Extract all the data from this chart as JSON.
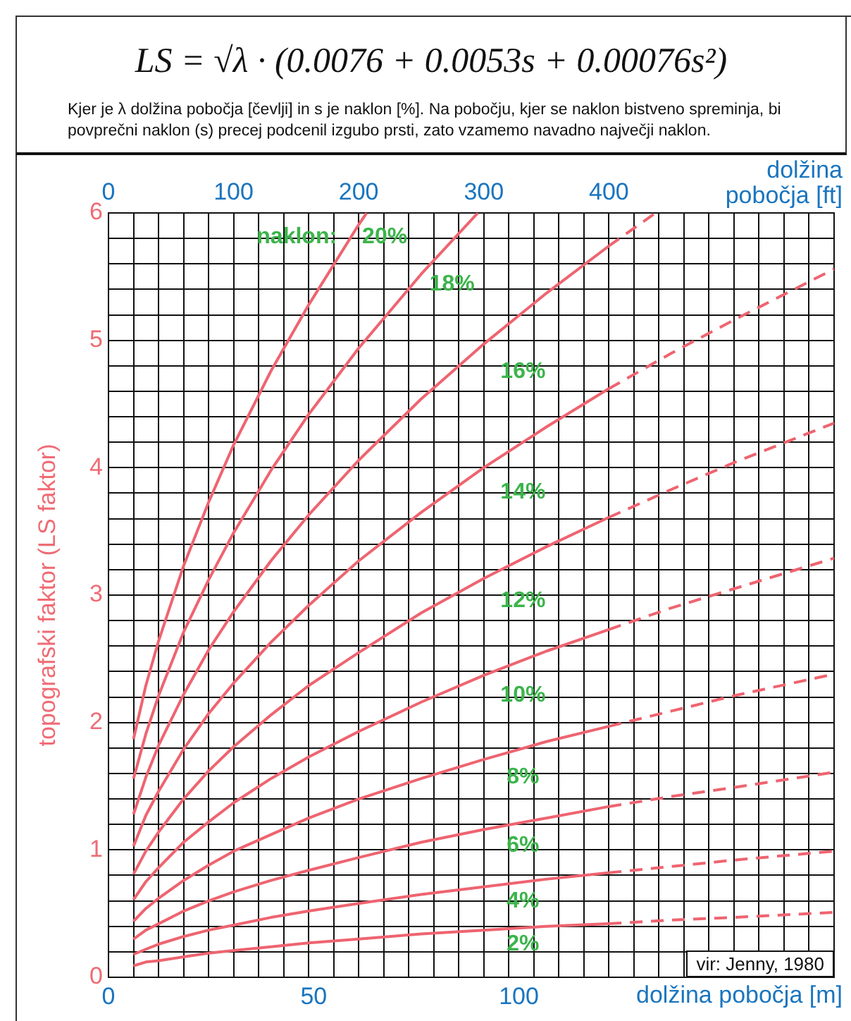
{
  "chart_data": {
    "type": "line",
    "title": "LS = √λ · (0.0076 + 0.0053s + 0.00076s²)",
    "subtitle": "Kjer je λ dolžina pobočja [čevlji] in s je naklon [%]. Na pobočju, kjer se naklon bistveno spreminja, bi povprečni naklon (s) precej podcenil izgubo prsti, zato vzamemo navadno največji naklon.",
    "xlabel": "dolžina pobočja [m]",
    "x2label": "dolžina pobočja [ft]",
    "ylabel": "topografski faktor (LS faktor)",
    "xlim": [
      0,
      176.8
    ],
    "xticks": [
      0,
      50,
      100
    ],
    "x2lim": [
      0,
      580
    ],
    "x2ticks": [
      0,
      {
        "value": 20,
        "label": null
      },
      {
        "value": 40,
        "label": null
      },
      {
        "value": 60,
        "label": null
      },
      {
        "value": 80,
        "label": null
      },
      100,
      {
        "value": 120,
        "label": null
      },
      {
        "value": 140,
        "label": null
      },
      {
        "value": 160,
        "label": null
      },
      {
        "value": 180,
        "label": null
      },
      200,
      {
        "value": 220,
        "label": null
      },
      {
        "value": 240,
        "label": null
      },
      {
        "value": 260,
        "label": null
      },
      {
        "value": 280,
        "label": null
      },
      300,
      {
        "value": 320,
        "label": null
      },
      {
        "value": 340,
        "label": null
      },
      {
        "value": 360,
        "label": null
      },
      {
        "value": 380,
        "label": null
      },
      400,
      {
        "value": 420,
        "label": null
      },
      {
        "value": 440,
        "label": null
      },
      {
        "value": 460,
        "label": null
      },
      {
        "value": 480,
        "label": null
      },
      {
        "value": 500,
        "label": null
      },
      {
        "value": 520,
        "label": null
      },
      {
        "value": 540,
        "label": null
      },
      {
        "value": 560,
        "label": null
      },
      {
        "value": 580,
        "label": null
      }
    ],
    "ylim": [
      0,
      6
    ],
    "yticks": [
      0,
      {
        "value": 0.2,
        "label": null
      },
      {
        "value": 0.4,
        "label": null
      },
      {
        "value": 0.6,
        "label": null
      },
      {
        "value": 0.8,
        "label": null
      },
      1,
      {
        "value": 1.2,
        "label": null
      },
      {
        "value": 1.4,
        "label": null
      },
      {
        "value": 1.6,
        "label": null
      },
      {
        "value": 1.8,
        "label": null
      },
      2,
      {
        "value": 2.2,
        "label": null
      },
      {
        "value": 2.4,
        "label": null
      },
      {
        "value": 2.6,
        "label": null
      },
      {
        "value": 2.8,
        "label": null
      },
      3,
      {
        "value": 3.2,
        "label": null
      },
      {
        "value": 3.4,
        "label": null
      },
      {
        "value": 3.6,
        "label": null
      },
      {
        "value": 3.8,
        "label": null
      },
      4,
      {
        "value": 4.2,
        "label": null
      },
      {
        "value": 4.4,
        "label": null
      },
      {
        "value": 4.6,
        "label": null
      },
      {
        "value": 4.8,
        "label": null
      },
      5,
      {
        "value": 5.2,
        "label": null
      },
      {
        "value": 5.4,
        "label": null
      },
      {
        "value": 5.6,
        "label": null
      },
      {
        "value": 5.8,
        "label": null
      },
      6
    ],
    "grid": true,
    "series": [
      {
        "name": "2%",
        "color": "#ee6470",
        "x": [
          6.1,
          9.1,
          12.2,
          18.3,
          24.4,
          30.5,
          39.6,
          48.8,
          61.0,
          76.2,
          91.4,
          106.7,
          121.9
        ],
        "values": [
          0.09,
          0.12,
          0.13,
          0.16,
          0.19,
          0.21,
          0.24,
          0.27,
          0.3,
          0.34,
          0.37,
          0.4,
          0.42
        ]
      },
      {
        "color": "#ee6470",
        "line_style": "dashed",
        "x": [
          121.9,
          137.2,
          152.4,
          176.8
        ],
        "values": [
          0.42,
          0.45,
          0.47,
          0.51
        ]
      },
      {
        "name": "4%",
        "color": "#ee6470",
        "x": [
          6.1,
          9.1,
          12.2,
          18.3,
          24.4,
          30.5,
          39.6,
          48.8,
          61.0,
          76.2,
          91.4,
          106.7,
          121.9
        ],
        "values": [
          0.18,
          0.22,
          0.26,
          0.32,
          0.37,
          0.41,
          0.47,
          0.52,
          0.58,
          0.65,
          0.71,
          0.77,
          0.82
        ]
      },
      {
        "color": "#ee6470",
        "line_style": "dashed",
        "x": [
          121.9,
          137.2,
          152.4,
          176.8
        ],
        "values": [
          0.82,
          0.87,
          0.92,
          0.99
        ]
      },
      {
        "name": "6%",
        "color": "#ee6470",
        "x": [
          6.1,
          9.1,
          12.2,
          18.3,
          24.4,
          30.5,
          39.6,
          48.8,
          61.0,
          76.2,
          91.4,
          106.7,
          121.9
        ],
        "values": [
          0.3,
          0.37,
          0.42,
          0.52,
          0.6,
          0.67,
          0.76,
          0.84,
          0.94,
          1.06,
          1.16,
          1.25,
          1.34
        ]
      },
      {
        "color": "#ee6470",
        "line_style": "dashed",
        "x": [
          121.9,
          137.2,
          152.4,
          176.8
        ],
        "values": [
          1.34,
          1.42,
          1.49,
          1.61
        ]
      },
      {
        "name": "8%",
        "color": "#ee6470",
        "x": [
          6.1,
          9.1,
          12.2,
          18.3,
          24.4,
          30.5,
          39.6,
          48.8,
          61.0,
          76.2,
          91.4,
          106.7,
          121.9
        ],
        "values": [
          0.44,
          0.54,
          0.62,
          0.76,
          0.88,
          0.99,
          1.12,
          1.25,
          1.4,
          1.56,
          1.71,
          1.85,
          1.97
        ]
      },
      {
        "color": "#ee6470",
        "line_style": "dashed",
        "x": [
          121.9,
          137.2,
          152.4,
          176.8
        ],
        "values": [
          1.97,
          2.09,
          2.21,
          2.38
        ]
      },
      {
        "name": "10%",
        "color": "#ee6470",
        "x": [
          6.1,
          9.1,
          12.2,
          18.3,
          24.4,
          30.5,
          39.6,
          48.8,
          61.0,
          76.2,
          91.4,
          106.7,
          121.9
        ],
        "values": [
          0.61,
          0.75,
          0.86,
          1.06,
          1.22,
          1.37,
          1.56,
          1.73,
          1.93,
          2.16,
          2.37,
          2.56,
          2.73
        ]
      },
      {
        "color": "#ee6470",
        "line_style": "dashed",
        "x": [
          121.9,
          137.2,
          152.4,
          176.8
        ],
        "values": [
          2.73,
          2.9,
          3.05,
          3.29
        ]
      },
      {
        "name": "12%",
        "color": "#ee6470",
        "x": [
          6.1,
          9.1,
          12.2,
          18.3,
          24.4,
          30.5,
          39.6,
          48.8,
          61.0,
          76.2,
          91.4,
          106.7,
          121.9
        ],
        "values": [
          0.81,
          0.99,
          1.14,
          1.4,
          1.62,
          1.81,
          2.06,
          2.29,
          2.55,
          2.86,
          3.13,
          3.38,
          3.61
        ]
      },
      {
        "color": "#ee6470",
        "line_style": "dashed",
        "x": [
          121.9,
          137.2,
          152.4,
          176.8
        ],
        "values": [
          3.61,
          3.83,
          4.04,
          4.35
        ]
      },
      {
        "name": "14%",
        "color": "#ee6470",
        "x": [
          6.1,
          9.1,
          12.2,
          18.3,
          24.4,
          30.5,
          39.6,
          48.8,
          61.0,
          76.2,
          91.4,
          106.7,
          121.9
        ],
        "values": [
          1.03,
          1.27,
          1.46,
          1.79,
          2.07,
          2.31,
          2.63,
          2.92,
          3.27,
          3.65,
          4.0,
          4.32,
          4.62
        ]
      },
      {
        "color": "#ee6470",
        "line_style": "dashed",
        "x": [
          121.9,
          137.2,
          152.4,
          176.8
        ],
        "values": [
          4.62,
          4.9,
          5.16,
          5.56
        ]
      },
      {
        "name": "16%",
        "color": "#ee6470",
        "x": [
          6.1,
          9.1,
          12.2,
          18.3,
          24.4,
          30.5,
          39.6,
          48.8,
          61.0,
          76.2,
          91.4,
          106.7,
          121.9
        ],
        "values": [
          1.28,
          1.57,
          1.82,
          2.22,
          2.57,
          2.87,
          3.27,
          3.63,
          4.06,
          4.54,
          4.97,
          5.37,
          5.74
        ]
      },
      {
        "color": "#ee6470",
        "line_style": "dashed",
        "x": [
          121.9,
          133.3
        ],
        "values": [
          5.74,
          6
        ]
      },
      {
        "name": "18%",
        "color": "#ee6470",
        "x": [
          6.1,
          9.1,
          12.2,
          18.3,
          24.4,
          30.5,
          39.6,
          48.8,
          61.0,
          76.2,
          90.0
        ],
        "values": [
          1.56,
          1.91,
          2.21,
          2.71,
          3.12,
          3.49,
          3.98,
          4.42,
          4.94,
          5.52,
          6
        ]
      },
      {
        "name": "20%",
        "color": "#ee6470",
        "x": [
          6.1,
          9.1,
          12.2,
          18.3,
          24.4,
          30.5,
          39.6,
          48.8,
          61.0,
          62.9
        ],
        "values": [
          1.87,
          2.29,
          2.64,
          3.23,
          3.73,
          4.18,
          4.76,
          5.28,
          5.91,
          6
        ]
      }
    ],
    "legend_title": "naklon:",
    "annotations": [
      "vir: Jenny, 1980"
    ]
  }
}
